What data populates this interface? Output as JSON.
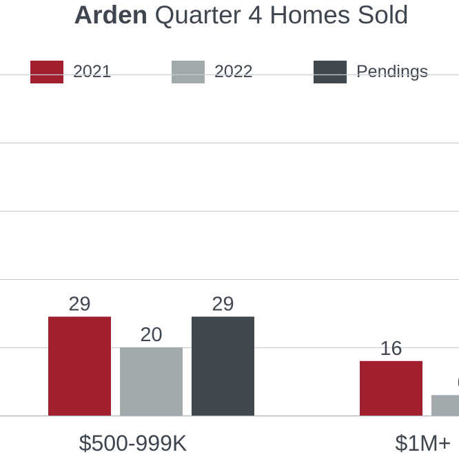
{
  "chart_data": {
    "type": "bar",
    "title_bold": "Arden",
    "title_rest": "Quarter 4 Homes Sold",
    "categories": [
      "$500-999K",
      "$1M+"
    ],
    "series": [
      {
        "name": "2021",
        "values": [
          29,
          16
        ],
        "color": "#a02030"
      },
      {
        "name": "2022",
        "values": [
          20,
          6
        ],
        "color": "#a2a9ad"
      },
      {
        "name": "Pendings",
        "values": [
          29,
          null
        ],
        "color": "#40484f"
      }
    ],
    "ylim": [
      0,
      100
    ],
    "grid": true,
    "legend": "top"
  }
}
